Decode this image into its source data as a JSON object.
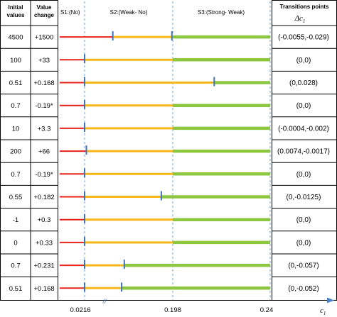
{
  "headers": {
    "initial_values": [
      "Initial",
      "values"
    ],
    "value_change": [
      "Value",
      "change"
    ],
    "transitions": "Transitions points",
    "delta_symbol": "Δc",
    "delta_sub": "1"
  },
  "regions": {
    "s1": "S1:(No)",
    "s2": "S2:(Weak- No)",
    "s3": "S3:(Strong- Weak)"
  },
  "axis": {
    "ticks": [
      "0.0216",
      "0.198",
      "0.24"
    ],
    "break_mark": "//",
    "label": "c",
    "label_sub": "1"
  },
  "colors": {
    "red": "#e8231d",
    "yellow": "#f7b61a",
    "green": "#8dc63f",
    "marker": "#3f73b8",
    "dashed": "#6fa3d8"
  },
  "rows": [
    {
      "initial": "4500",
      "change": "+1500",
      "transition": "(-0.0055,-0.029)",
      "yellow_start": 0.32,
      "green_start": 0.99,
      "markers": [
        0.32,
        0.99
      ]
    },
    {
      "initial": "100",
      "change": "+33",
      "transition": "(0,0)",
      "yellow_start": 0.0,
      "green_start": 1.0,
      "markers": [
        0.0
      ]
    },
    {
      "initial": "0.51",
      "change": "+0.168",
      "transition": "(0,0.028)",
      "yellow_start": 0.0,
      "green_start": 1.47,
      "markers": [
        0.0,
        1.47
      ]
    },
    {
      "initial": "0.7",
      "change": "-0.19*",
      "transition": "(0,0)",
      "yellow_start": 0.0,
      "green_start": 1.0,
      "markers": [
        0.0
      ]
    },
    {
      "initial": "10",
      "change": "+3.3",
      "transition": "(-0.0004,-0.002)",
      "yellow_start": 0.0,
      "green_start": 1.0,
      "markers": [
        0.0
      ]
    },
    {
      "initial": "200",
      "change": "+66",
      "transition": "(0.0074,-0.0017)",
      "yellow_start": 0.02,
      "green_start": 1.0,
      "markers": [
        0.02
      ]
    },
    {
      "initial": "0.7",
      "change": "-0.19*",
      "transition": "(0,0)",
      "yellow_start": 0.0,
      "green_start": 1.0,
      "markers": [
        0.0
      ]
    },
    {
      "initial": "0.55",
      "change": "+0.182",
      "transition": "(0,-0.0125)",
      "yellow_start": 0.0,
      "green_start": 0.87,
      "markers": [
        0.0,
        0.87
      ]
    },
    {
      "initial": "-1",
      "change": "+0.3",
      "transition": "(0,0)",
      "yellow_start": 0.0,
      "green_start": 1.0,
      "markers": [
        0.0
      ]
    },
    {
      "initial": "0",
      "change": "+0.33",
      "transition": "(0,0)",
      "yellow_start": 0.0,
      "green_start": 1.0,
      "markers": [
        0.0
      ]
    },
    {
      "initial": "0.7",
      "change": "+0.231",
      "transition": "(0,-0.057)",
      "yellow_start": 0.0,
      "green_start": 0.45,
      "markers": [
        0.0,
        0.45
      ]
    },
    {
      "initial": "0.51",
      "change": "+0.168",
      "transition": "(0,-0.052)",
      "yellow_start": 0.0,
      "green_start": 0.42,
      "markers": [
        0.0,
        0.42
      ]
    }
  ]
}
